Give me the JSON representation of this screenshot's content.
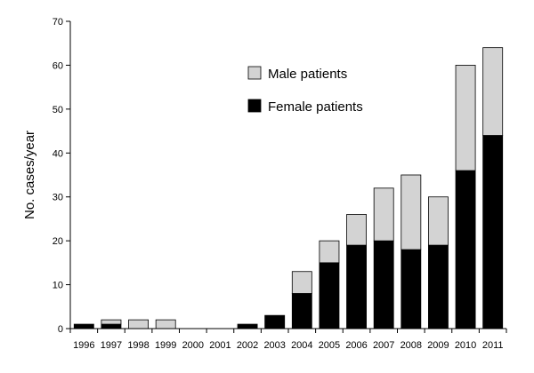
{
  "colors": {
    "male": "#d3d3d3",
    "female": "#000000",
    "axis": "#000000",
    "background": "#ffffff"
  },
  "chart_data": {
    "type": "bar",
    "stacked": true,
    "title": "",
    "xlabel": "",
    "ylabel": "No. cases/year",
    "ylim": [
      0,
      70
    ],
    "yticks": [
      0,
      10,
      20,
      30,
      40,
      50,
      60,
      70
    ],
    "grid": false,
    "legend_position": "top-center",
    "categories": [
      "1996",
      "1997",
      "1998",
      "1999",
      "2000",
      "2001",
      "2002",
      "2003",
      "2004",
      "2005",
      "2006",
      "2007",
      "2008",
      "2009",
      "2010",
      "2011"
    ],
    "series": [
      {
        "name": "Female patients",
        "color": "#000000",
        "values": [
          1,
          1,
          0,
          0,
          0,
          0,
          1,
          3,
          8,
          15,
          19,
          20,
          18,
          19,
          36,
          44
        ]
      },
      {
        "name": "Male patients",
        "color": "#d3d3d3",
        "values": [
          0,
          1,
          2,
          2,
          0,
          0,
          0,
          0,
          5,
          5,
          7,
          12,
          17,
          11,
          24,
          20
        ]
      }
    ],
    "legend": [
      {
        "label": "Male patients",
        "color": "#d3d3d3"
      },
      {
        "label": "Female patients",
        "color": "#000000"
      }
    ]
  }
}
